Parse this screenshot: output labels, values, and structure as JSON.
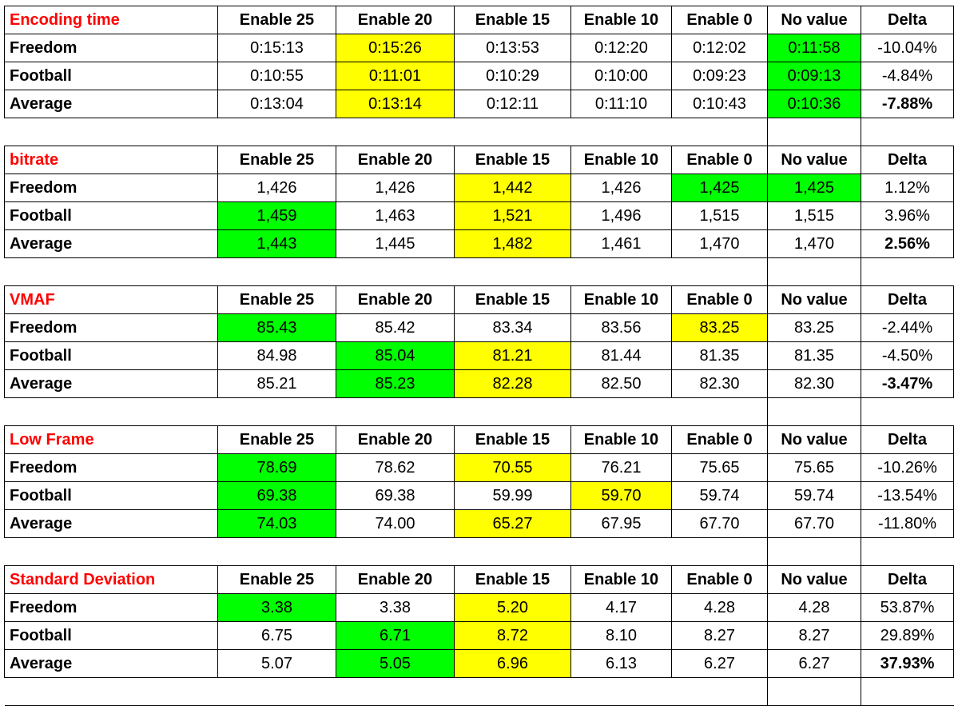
{
  "chart_data": {
    "type": "table",
    "columns": [
      "Enable 25",
      "Enable 20",
      "Enable 15",
      "Enable 10",
      "Enable 0",
      "No value",
      "Delta"
    ],
    "highlight_colors": {
      "yellow": "#ffff00",
      "green": "#00ff00",
      "title_red": "#ff0000"
    },
    "sections": [
      {
        "title": "Encoding time",
        "rows": [
          {
            "label": "Freedom",
            "values": [
              "0:15:13",
              "0:15:26",
              "0:13:53",
              "0:12:20",
              "0:12:02",
              "0:11:58",
              "-10.04%"
            ],
            "highlight": [
              null,
              "yellow",
              null,
              null,
              null,
              "green",
              null
            ],
            "bold_delta": false
          },
          {
            "label": "Football",
            "values": [
              "0:10:55",
              "0:11:01",
              "0:10:29",
              "0:10:00",
              "0:09:23",
              "0:09:13",
              "-4.84%"
            ],
            "highlight": [
              null,
              "yellow",
              null,
              null,
              null,
              "green",
              null
            ],
            "bold_delta": false
          },
          {
            "label": "Average",
            "values": [
              "0:13:04",
              "0:13:14",
              "0:12:11",
              "0:11:10",
              "0:10:43",
              "0:10:36",
              "-7.88%"
            ],
            "highlight": [
              null,
              "yellow",
              null,
              null,
              null,
              "green",
              null
            ],
            "bold_delta": true
          }
        ]
      },
      {
        "title": "bitrate",
        "rows": [
          {
            "label": "Freedom",
            "values": [
              "1,426",
              "1,426",
              "1,442",
              "1,426",
              "1,425",
              "1,425",
              "1.12%"
            ],
            "highlight": [
              null,
              null,
              "yellow",
              null,
              "green",
              "green",
              null
            ],
            "bold_delta": false
          },
          {
            "label": "Football",
            "values": [
              "1,459",
              "1,463",
              "1,521",
              "1,496",
              "1,515",
              "1,515",
              "3.96%"
            ],
            "highlight": [
              "green",
              null,
              "yellow",
              null,
              null,
              null,
              null
            ],
            "bold_delta": false
          },
          {
            "label": "Average",
            "values": [
              "1,443",
              "1,445",
              "1,482",
              "1,461",
              "1,470",
              "1,470",
              "2.56%"
            ],
            "highlight": [
              "green",
              null,
              "yellow",
              null,
              null,
              null,
              null
            ],
            "bold_delta": true
          }
        ]
      },
      {
        "title": "VMAF",
        "rows": [
          {
            "label": "Freedom",
            "values": [
              "85.43",
              "85.42",
              "83.34",
              "83.56",
              "83.25",
              "83.25",
              "-2.44%"
            ],
            "highlight": [
              "green",
              null,
              null,
              null,
              "yellow",
              null,
              null
            ],
            "bold_delta": false
          },
          {
            "label": "Football",
            "values": [
              "84.98",
              "85.04",
              "81.21",
              "81.44",
              "81.35",
              "81.35",
              "-4.50%"
            ],
            "highlight": [
              null,
              "green",
              "yellow",
              null,
              null,
              null,
              null
            ],
            "bold_delta": false
          },
          {
            "label": "Average",
            "values": [
              "85.21",
              "85.23",
              "82.28",
              "82.50",
              "82.30",
              "82.30",
              "-3.47%"
            ],
            "highlight": [
              null,
              "green",
              "yellow",
              null,
              null,
              null,
              null
            ],
            "bold_delta": true
          }
        ]
      },
      {
        "title": "Low Frame",
        "rows": [
          {
            "label": "Freedom",
            "values": [
              "78.69",
              "78.62",
              "70.55",
              "76.21",
              "75.65",
              "75.65",
              "-10.26%"
            ],
            "highlight": [
              "green",
              null,
              "yellow",
              null,
              null,
              null,
              null
            ],
            "bold_delta": false
          },
          {
            "label": "Football",
            "values": [
              "69.38",
              "69.38",
              "59.99",
              "59.70",
              "59.74",
              "59.74",
              "-13.54%"
            ],
            "highlight": [
              "green",
              null,
              null,
              "yellow",
              null,
              null,
              null
            ],
            "bold_delta": false
          },
          {
            "label": "Average",
            "values": [
              "74.03",
              "74.00",
              "65.27",
              "67.95",
              "67.70",
              "67.70",
              "-11.80%"
            ],
            "highlight": [
              "green",
              null,
              "yellow",
              null,
              null,
              null,
              null
            ],
            "bold_delta": false
          }
        ]
      },
      {
        "title": "Standard Deviation",
        "rows": [
          {
            "label": "Freedom",
            "values": [
              "3.38",
              "3.38",
              "5.20",
              "4.17",
              "4.28",
              "4.28",
              "53.87%"
            ],
            "highlight": [
              "green",
              null,
              "yellow",
              null,
              null,
              null,
              null
            ],
            "bold_delta": false
          },
          {
            "label": "Football",
            "values": [
              "6.75",
              "6.71",
              "8.72",
              "8.10",
              "8.27",
              "8.27",
              "29.89%"
            ],
            "highlight": [
              null,
              "green",
              "yellow",
              null,
              null,
              null,
              null
            ],
            "bold_delta": false
          },
          {
            "label": "Average",
            "values": [
              "5.07",
              "5.05",
              "6.96",
              "6.13",
              "6.27",
              "6.27",
              "37.93%"
            ],
            "highlight": [
              null,
              "green",
              "yellow",
              null,
              null,
              null,
              null
            ],
            "bold_delta": true
          }
        ]
      }
    ]
  }
}
